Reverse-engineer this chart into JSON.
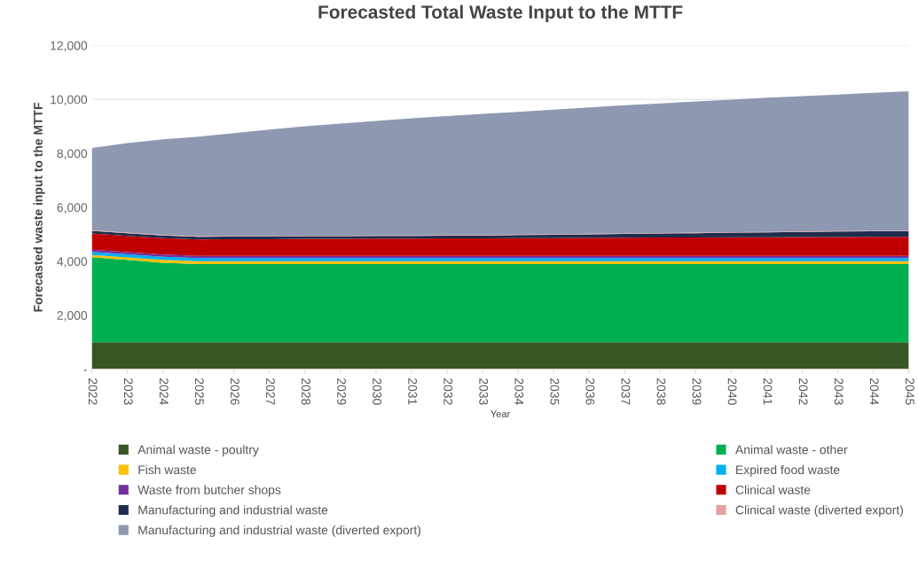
{
  "chart_data": {
    "type": "area",
    "stacked": true,
    "title": "Forecasted Total Waste Input to the MTTF",
    "xlabel": "Year",
    "ylabel": "Forecasted waste input to the MTTF",
    "categories": [
      "2022",
      "2023",
      "2024",
      "2025",
      "2026",
      "2027",
      "2028",
      "2029",
      "2030",
      "2031",
      "2032",
      "2033",
      "2034",
      "2035",
      "2036",
      "2037",
      "2038",
      "2039",
      "2040",
      "2041",
      "2042",
      "2043",
      "2044",
      "2045"
    ],
    "ylim": [
      0,
      12000
    ],
    "yticks": [
      {
        "value": 0,
        "label": "-"
      },
      {
        "value": 2000,
        "label": "2,000"
      },
      {
        "value": 4000,
        "label": "4,000"
      },
      {
        "value": 6000,
        "label": "6,000"
      },
      {
        "value": 8000,
        "label": "8,000"
      },
      {
        "value": 10000,
        "label": "10,000"
      },
      {
        "value": 12000,
        "label": "12,000"
      }
    ],
    "grid": "y",
    "legend": "bottom",
    "series": [
      {
        "name": "Animal waste - poultry",
        "color": "#375623",
        "values": [
          1000,
          1000,
          1000,
          1000,
          1000,
          1000,
          1000,
          1000,
          1000,
          1000,
          1000,
          1000,
          1000,
          1000,
          1000,
          1000,
          1000,
          1000,
          1000,
          1000,
          1000,
          1000,
          1000,
          1000
        ]
      },
      {
        "name": "Animal waste - other",
        "color": "#00b050",
        "values": [
          3150,
          3050,
          2950,
          2900,
          2900,
          2900,
          2900,
          2900,
          2900,
          2900,
          2900,
          2900,
          2900,
          2900,
          2900,
          2900,
          2900,
          2900,
          2900,
          2900,
          2900,
          2900,
          2900,
          2900
        ]
      },
      {
        "name": "Fish waste",
        "color": "#ffc000",
        "values": [
          80,
          90,
          100,
          100,
          100,
          100,
          100,
          100,
          100,
          100,
          100,
          100,
          100,
          100,
          100,
          100,
          100,
          100,
          100,
          100,
          100,
          100,
          100,
          100
        ]
      },
      {
        "name": "Expired food waste",
        "color": "#00b0f0",
        "values": [
          120,
          120,
          120,
          120,
          120,
          120,
          120,
          120,
          120,
          120,
          120,
          120,
          120,
          120,
          120,
          120,
          120,
          120,
          120,
          120,
          120,
          120,
          120,
          120
        ]
      },
      {
        "name": "Waste from butcher shops",
        "color": "#7030a0",
        "values": [
          80,
          80,
          80,
          80,
          80,
          80,
          80,
          80,
          80,
          80,
          80,
          80,
          80,
          80,
          80,
          80,
          80,
          80,
          80,
          80,
          80,
          80,
          80,
          80
        ]
      },
      {
        "name": "Clinical waste",
        "color": "#c00000",
        "values": [
          600,
          600,
          610,
          610,
          620,
          620,
          630,
          630,
          640,
          640,
          650,
          650,
          660,
          660,
          670,
          670,
          680,
          680,
          690,
          690,
          700,
          700,
          710,
          710
        ]
      },
      {
        "name": "Manufacturing and industrial waste",
        "color": "#1f2d4d",
        "values": [
          100,
          100,
          100,
          100,
          100,
          100,
          100,
          100,
          100,
          100,
          100,
          100,
          110,
          120,
          130,
          140,
          150,
          160,
          170,
          180,
          190,
          200,
          200,
          200
        ]
      },
      {
        "name": "Clinical waste (diverted export)",
        "color": "#e6a0a0",
        "values": [
          20,
          20,
          20,
          20,
          20,
          20,
          20,
          20,
          20,
          20,
          20,
          20,
          20,
          20,
          20,
          20,
          20,
          20,
          20,
          20,
          20,
          20,
          20,
          20
        ]
      },
      {
        "name": "Manufacturing and industrial waste (diverted export)",
        "color": "#8e98b0",
        "values": [
          3050,
          3320,
          3540,
          3690,
          3810,
          3940,
          4050,
          4150,
          4240,
          4340,
          4410,
          4490,
          4550,
          4620,
          4680,
          4750,
          4800,
          4860,
          4910,
          4970,
          5010,
          5060,
          5110,
          5170
        ]
      }
    ]
  }
}
